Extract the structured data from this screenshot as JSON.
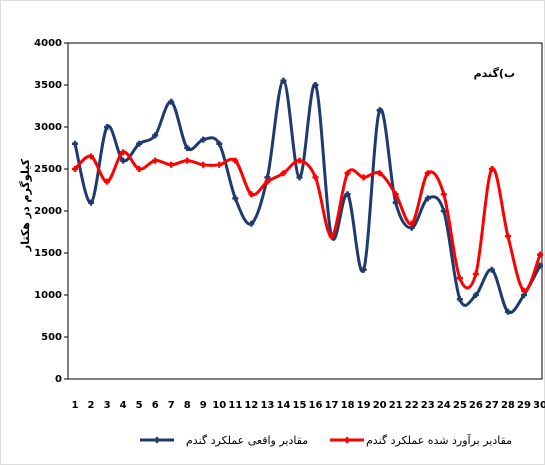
{
  "chart_data": {
    "type": "line",
    "annotation": "ب)گندم",
    "y_label": "کیلوگرم در هکتار",
    "categories": [
      1,
      2,
      3,
      4,
      5,
      6,
      7,
      8,
      9,
      10,
      11,
      12,
      13,
      14,
      15,
      16,
      17,
      18,
      19,
      20,
      21,
      22,
      23,
      24,
      25,
      26,
      27,
      28,
      29,
      30
    ],
    "series": [
      {
        "name": "مقادیر واقعی عملکرد گندم",
        "color": "#1f3a6e",
        "values": [
          2800,
          2100,
          3000,
          2600,
          2800,
          2900,
          3300,
          2750,
          2850,
          2800,
          2150,
          1850,
          2400,
          3550,
          2400,
          3500,
          1700,
          2200,
          1300,
          3200,
          2100,
          1800,
          2150,
          2000,
          950,
          1000,
          1300,
          800,
          1000,
          1350
        ]
      },
      {
        "name": "مقادیر برآورد شده عملکرد گندم",
        "color": "#ff0000",
        "values": [
          2500,
          2650,
          2350,
          2700,
          2500,
          2600,
          2550,
          2600,
          2550,
          2550,
          2600,
          2200,
          2350,
          2450,
          2600,
          2400,
          1700,
          2450,
          2400,
          2450,
          2200,
          1850,
          2450,
          2200,
          1200,
          1250,
          2500,
          1700,
          1050,
          1480
        ]
      }
    ],
    "ylim": [
      0,
      4000
    ],
    "yticks": [
      0,
      500,
      1000,
      1500,
      2000,
      2500,
      3000,
      3500,
      4000
    ],
    "grid": false
  }
}
